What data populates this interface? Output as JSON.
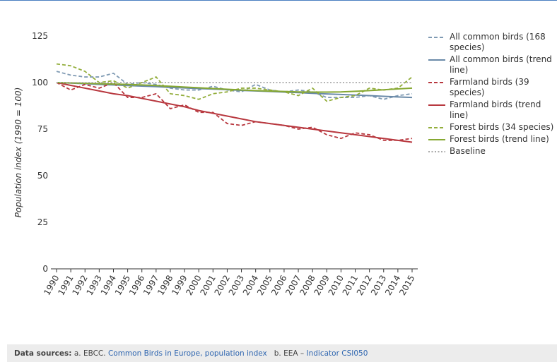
{
  "chart_data": {
    "type": "line",
    "y_label": "Population index (1990 = 100)",
    "x": [
      1990,
      1991,
      1992,
      1993,
      1994,
      1995,
      1996,
      1997,
      1998,
      1999,
      2000,
      2001,
      2002,
      2003,
      2004,
      2005,
      2006,
      2007,
      2008,
      2009,
      2010,
      2011,
      2012,
      2013,
      2014,
      2015
    ],
    "xlim": [
      1990,
      2015
    ],
    "ylim": [
      0,
      125
    ],
    "yticks": [
      0,
      25,
      50,
      75,
      100,
      125
    ],
    "series": [
      {
        "name": "All common birds (168 species)",
        "color": "#7f9ab3",
        "dash": "dashed",
        "values": [
          106,
          104,
          103,
          103,
          105,
          99,
          100,
          99,
          97,
          96,
          96,
          98,
          96,
          95,
          99,
          96,
          95,
          96,
          95,
          92,
          92,
          92,
          93,
          91,
          93,
          94
        ]
      },
      {
        "name": "All common birds (trend line)",
        "color": "#6a8aa8",
        "dash": "solid",
        "values": [
          100,
          99.7,
          99.4,
          99,
          98.7,
          98.4,
          98.1,
          97.8,
          97.4,
          97.1,
          96.8,
          96.5,
          96.2,
          95.8,
          95.5,
          95.2,
          94.9,
          94.6,
          94.2,
          93.9,
          93.6,
          93.3,
          93,
          92.6,
          92.3,
          92
        ]
      },
      {
        "name": "Farmland birds (39 species)",
        "color": "#b8383f",
        "dash": "dashed",
        "values": [
          100,
          96,
          99,
          97,
          100,
          92,
          92,
          94,
          86,
          88,
          84,
          84,
          78,
          77,
          79,
          78,
          77,
          75,
          76,
          72,
          70,
          73,
          72,
          69,
          69,
          70
        ]
      },
      {
        "name": "Farmland birds (trend line)",
        "color": "#b8383f",
        "dash": "solid",
        "values": [
          100,
          98.5,
          97,
          95.5,
          94,
          93,
          91.5,
          90,
          88.5,
          87,
          85,
          83.5,
          82,
          80.5,
          79,
          78,
          77,
          76,
          75,
          74,
          73,
          72,
          71,
          70,
          69,
          68
        ]
      },
      {
        "name": "Forest birds (34 species)",
        "color": "#93ae3c",
        "dash": "dashed",
        "values": [
          110,
          109,
          106,
          100,
          101,
          97,
          100,
          103,
          94,
          93,
          91,
          94,
          95,
          97,
          97,
          96,
          95,
          93,
          97,
          90,
          92,
          93,
          97,
          96,
          97,
          103
        ]
      },
      {
        "name": "Forest birds (trend line)",
        "color": "#86a832",
        "dash": "solid",
        "values": [
          100,
          99.8,
          99.6,
          99.4,
          99.2,
          99,
          98.7,
          98.4,
          98,
          97.6,
          97.2,
          96.8,
          96.4,
          96,
          95.7,
          95.4,
          95.2,
          95,
          94.9,
          94.9,
          95,
          95.3,
          95.7,
          96.1,
          96.6,
          97
        ]
      },
      {
        "name": "Baseline",
        "color": "#aaaaaa",
        "dash": "dotted",
        "values": [
          100,
          100,
          100,
          100,
          100,
          100,
          100,
          100,
          100,
          100,
          100,
          100,
          100,
          100,
          100,
          100,
          100,
          100,
          100,
          100,
          100,
          100,
          100,
          100,
          100,
          100
        ]
      }
    ]
  },
  "footer": {
    "label": "Data sources:",
    "a": "a. EBCC.",
    "a_link": "Common Birds in Europe, population index",
    "b": "b. EEA –",
    "b_link": "Indicator CSI050"
  }
}
